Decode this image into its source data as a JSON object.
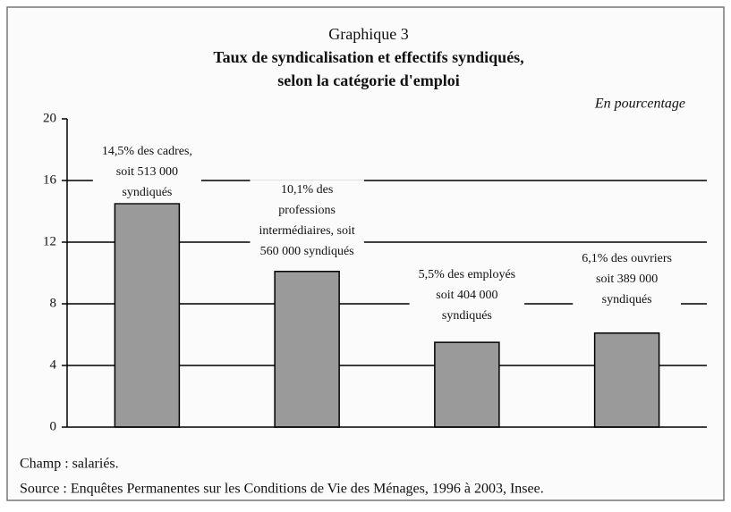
{
  "chart_data": {
    "type": "bar",
    "title": "Graphique 3",
    "subtitle": "Taux de syndicalisation et effectifs syndiqués,",
    "subtitle2": "selon la catégorie d'emploi",
    "unit_note": "En pourcentage",
    "categories": [
      null,
      null,
      null,
      null
    ],
    "values": [
      14.5,
      10.1,
      5.5,
      6.1
    ],
    "value_labels": [
      "14,5% des cadres,\nsoit 513 000\nsyndiqués",
      "10,1% des\nprofessions\nintermédiaires, soit\n560 000 syndiqués",
      "5,5% des employés\nsoit 404 000\nsyndiqués",
      "6,1% des ouvriers\nsoit 389 000\nsyndiqués"
    ],
    "color": "#9a9a9a",
    "ylim": [
      0,
      20
    ],
    "yticks": [
      0,
      4,
      8,
      12,
      16,
      20
    ],
    "grid": true,
    "notes": [
      "Champ : salariés.",
      "Source : Enquêtes Permanentes sur les Conditions de Vie des Ménages, 1996 à 2003, Insee."
    ]
  }
}
